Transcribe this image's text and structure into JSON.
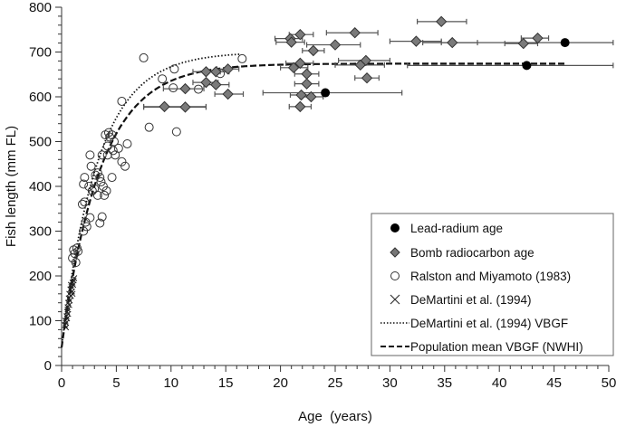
{
  "chart_data": {
    "type": "scatter",
    "title": "",
    "xlabel": "Age  (years)",
    "ylabel": "Fish length (mm FL)",
    "xlim": [
      0,
      50
    ],
    "ylim": [
      0,
      800
    ],
    "xticks": [
      0,
      5,
      10,
      15,
      20,
      25,
      30,
      35,
      40,
      45,
      50
    ],
    "yticks": [
      0,
      100,
      200,
      300,
      400,
      500,
      600,
      700,
      800
    ],
    "legend_position": "bottom-right",
    "legend": [
      "Lead-radium age",
      "Bomb radiocarbon age",
      "Ralston and Miyamoto (1983)",
      "DeMartini et al. (1994)",
      "DeMartini et al. (1994) VBGF",
      "Population mean VBGF (NWHI)"
    ],
    "series": [
      {
        "name": "Lead-radium age",
        "marker": "filled-circle",
        "points": [
          {
            "x": 24.1,
            "y": 609,
            "xmin": 18.4,
            "xmax": 31.1
          },
          {
            "x": 46.0,
            "y": 721,
            "xmin": 34.7,
            "xmax": 50.4
          },
          {
            "x": 42.5,
            "y": 670,
            "xmin": 31.6,
            "xmax": 50.4
          }
        ]
      },
      {
        "name": "Bomb radiocarbon age",
        "marker": "gray-diamond",
        "points": [
          {
            "x": 9.4,
            "y": 578,
            "xmin": 7.5,
            "xmax": 13.2
          },
          {
            "x": 11.3,
            "y": 577,
            "xmin": 7.5,
            "xmax": 13.2
          },
          {
            "x": 13.2,
            "y": 656,
            "xmin": 12.0,
            "xmax": 14.5
          },
          {
            "x": 14.1,
            "y": 656,
            "xmin": 13.0,
            "xmax": 15.3
          },
          {
            "x": 15.2,
            "y": 662,
            "xmin": 14.2,
            "xmax": 16.2
          },
          {
            "x": 13.2,
            "y": 632,
            "xmin": 12.0,
            "xmax": 14.3
          },
          {
            "x": 14.1,
            "y": 627,
            "xmin": 13.0,
            "xmax": 15.3
          },
          {
            "x": 11.3,
            "y": 618,
            "xmin": 9.3,
            "xmax": 13.0
          },
          {
            "x": 15.2,
            "y": 606,
            "xmin": 14.0,
            "xmax": 16.6
          },
          {
            "x": 21.8,
            "y": 739,
            "xmin": 20.8,
            "xmax": 23.0
          },
          {
            "x": 20.9,
            "y": 730,
            "xmin": 19.5,
            "xmax": 22.0
          },
          {
            "x": 21.0,
            "y": 722,
            "xmin": 19.6,
            "xmax": 22.2
          },
          {
            "x": 23.0,
            "y": 703,
            "xmin": 22.0,
            "xmax": 24.0
          },
          {
            "x": 25.0,
            "y": 716,
            "xmin": 22.4,
            "xmax": 27.3
          },
          {
            "x": 26.8,
            "y": 743,
            "xmin": 24.2,
            "xmax": 28.9
          },
          {
            "x": 34.7,
            "y": 768,
            "xmin": 32.5,
            "xmax": 37.0
          },
          {
            "x": 32.4,
            "y": 724,
            "xmin": 30.0,
            "xmax": 34.7
          },
          {
            "x": 35.7,
            "y": 721,
            "xmin": 33.0,
            "xmax": 38.0
          },
          {
            "x": 42.2,
            "y": 719,
            "xmin": 40.5,
            "xmax": 43.5
          },
          {
            "x": 43.5,
            "y": 731,
            "xmin": 42.0,
            "xmax": 44.5
          },
          {
            "x": 27.8,
            "y": 681,
            "xmin": 25.3,
            "xmax": 30.0
          },
          {
            "x": 27.3,
            "y": 671,
            "xmin": 25.0,
            "xmax": 29.5
          },
          {
            "x": 27.9,
            "y": 642,
            "xmin": 26.8,
            "xmax": 29.0
          },
          {
            "x": 21.8,
            "y": 675,
            "xmin": 20.5,
            "xmax": 23.0
          },
          {
            "x": 21.2,
            "y": 665,
            "xmin": 20.0,
            "xmax": 22.5
          },
          {
            "x": 22.4,
            "y": 651,
            "xmin": 21.3,
            "xmax": 23.5
          },
          {
            "x": 22.4,
            "y": 629,
            "xmin": 21.3,
            "xmax": 23.5
          },
          {
            "x": 21.9,
            "y": 604,
            "xmin": 20.9,
            "xmax": 23.0
          },
          {
            "x": 22.8,
            "y": 600,
            "xmin": 21.8,
            "xmax": 23.9
          },
          {
            "x": 21.8,
            "y": 578,
            "xmin": 20.8,
            "xmax": 22.8
          }
        ]
      },
      {
        "name": "Ralston and Miyamoto (1983)",
        "marker": "open-circle",
        "points": [
          [
            1.3,
            230
          ],
          [
            1.2,
            250
          ],
          [
            1.4,
            262
          ],
          [
            1.1,
            258
          ],
          [
            1.5,
            255
          ],
          [
            1.0,
            240
          ],
          [
            2.0,
            300
          ],
          [
            2.3,
            310
          ],
          [
            2.2,
            320
          ],
          [
            2.6,
            330
          ],
          [
            1.9,
            360
          ],
          [
            2.1,
            365
          ],
          [
            2.0,
            405
          ],
          [
            2.1,
            420
          ],
          [
            2.5,
            400
          ],
          [
            2.8,
            390
          ],
          [
            3.0,
            395
          ],
          [
            2.6,
            470
          ],
          [
            2.7,
            445
          ],
          [
            3.1,
            425
          ],
          [
            3.3,
            430
          ],
          [
            3.5,
            420
          ],
          [
            3.6,
            410
          ],
          [
            3.8,
            400
          ],
          [
            3.9,
            380
          ],
          [
            4.1,
            390
          ],
          [
            3.5,
            318
          ],
          [
            3.7,
            332
          ],
          [
            4.6,
            420
          ],
          [
            3.3,
            380
          ],
          [
            3.7,
            470
          ],
          [
            4.2,
            490
          ],
          [
            4.4,
            510
          ],
          [
            4.6,
            515
          ],
          [
            4.7,
            480
          ],
          [
            4.9,
            470
          ],
          [
            5.2,
            485
          ],
          [
            5.5,
            455
          ],
          [
            5.8,
            445
          ],
          [
            6.0,
            495
          ],
          [
            4.8,
            500
          ],
          [
            4.2,
            470
          ],
          [
            5.5,
            590
          ],
          [
            7.5,
            687
          ],
          [
            8.0,
            532
          ],
          [
            9.2,
            640
          ],
          [
            10.3,
            662
          ],
          [
            10.5,
            522
          ],
          [
            10.2,
            620
          ],
          [
            12.5,
            617
          ],
          [
            14.5,
            652
          ],
          [
            16.5,
            685
          ],
          [
            4.0,
            515
          ],
          [
            4.3,
            520
          ]
        ]
      },
      {
        "name": "DeMartini et al. (1994)",
        "marker": "x",
        "points": [
          [
            0.3,
            90
          ],
          [
            0.35,
            100
          ],
          [
            0.4,
            95
          ],
          [
            0.45,
            110
          ],
          [
            0.5,
            105
          ],
          [
            0.5,
            120
          ],
          [
            0.55,
            130
          ],
          [
            0.6,
            115
          ],
          [
            0.6,
            140
          ],
          [
            0.65,
            150
          ],
          [
            0.7,
            135
          ],
          [
            0.7,
            160
          ],
          [
            0.75,
            145
          ],
          [
            0.8,
            170
          ],
          [
            0.85,
            155
          ],
          [
            0.9,
            175
          ],
          [
            0.95,
            165
          ],
          [
            1.0,
            185
          ],
          [
            1.05,
            180
          ],
          [
            1.1,
            190
          ],
          [
            1.15,
            195
          ],
          [
            0.4,
            85
          ],
          [
            0.55,
            125
          ],
          [
            0.85,
            180
          ],
          [
            1.0,
            160
          ]
        ]
      },
      {
        "name": "DeMartini et al. (1994) VBGF",
        "type": "line",
        "style": "dotted",
        "vbgf": {
          "Linf": 700,
          "K": 0.3,
          "t0": -0.2
        },
        "xrange": [
          0,
          16.5
        ]
      },
      {
        "name": "Population mean VBGF (NWHI)",
        "type": "line",
        "style": "dashed",
        "vbgf": {
          "Linf": 674,
          "K": 0.28,
          "t0": -0.22
        },
        "xrange": [
          0,
          46
        ]
      }
    ]
  }
}
